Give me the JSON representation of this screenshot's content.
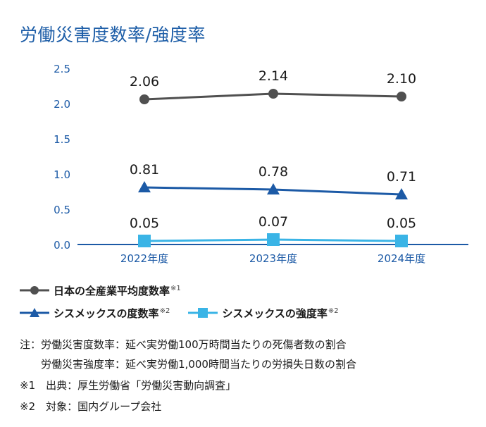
{
  "title": "労働災害度数率/強度率",
  "chart_data": {
    "type": "line",
    "categories": [
      "2022年度",
      "2023年度",
      "2024年度"
    ],
    "ylim": [
      0,
      2.5
    ],
    "yticks": [
      "0.0",
      "0.5",
      "1.0",
      "1.5",
      "2.0",
      "2.5"
    ],
    "series": [
      {
        "name": "日本の全産業平均度数率",
        "note_mark": "※1",
        "marker": "circle",
        "color": "#505050",
        "values": [
          2.06,
          2.14,
          2.1
        ],
        "labels": [
          "2.06",
          "2.14",
          "2.10"
        ]
      },
      {
        "name": "シスメックスの度数率",
        "note_mark": "※2",
        "marker": "triangle",
        "color": "#1c5aa6",
        "values": [
          0.81,
          0.78,
          0.71
        ],
        "labels": [
          "0.81",
          "0.78",
          "0.71"
        ]
      },
      {
        "name": "シスメックスの強度率",
        "note_mark": "※2",
        "marker": "square",
        "color": "#3ab4e6",
        "values": [
          0.05,
          0.07,
          0.05
        ],
        "labels": [
          "0.05",
          "0.07",
          "0.05"
        ]
      }
    ],
    "axis_color": "#1c5aa6",
    "tick_label_color": "#1c5aa6"
  },
  "notes": {
    "line1": "注：労働災害度数率：延べ実労働100万時間当たりの死傷者数の割合",
    "line2": "労働災害強度率：延べ実労働1,000時間当たりの労損失日数の割合",
    "line3": "※1　出典：厚生労働省「労働災害動向調査」",
    "line4": "※2　対象：国内グループ会社"
  }
}
